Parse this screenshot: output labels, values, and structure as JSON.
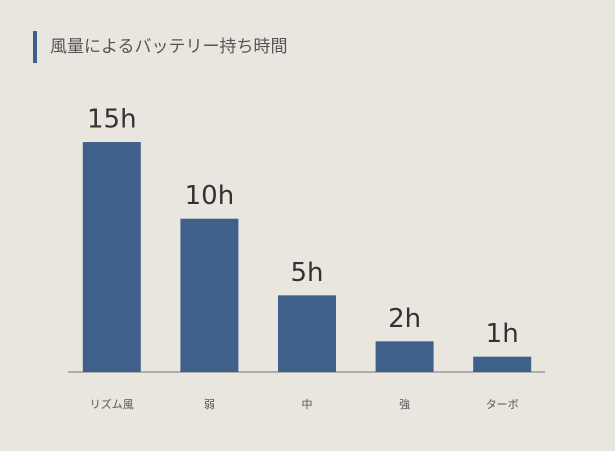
{
  "chart_data": {
    "type": "bar",
    "title": "風量によるバッテリー持ち時間",
    "categories": [
      "リズム風",
      "弱",
      "中",
      "強",
      "ターボ"
    ],
    "values": [
      15,
      10,
      5,
      2,
      1
    ],
    "value_labels": [
      "15h",
      "10h",
      "5h",
      "2h",
      "1h"
    ],
    "color": "#3f6089"
  }
}
